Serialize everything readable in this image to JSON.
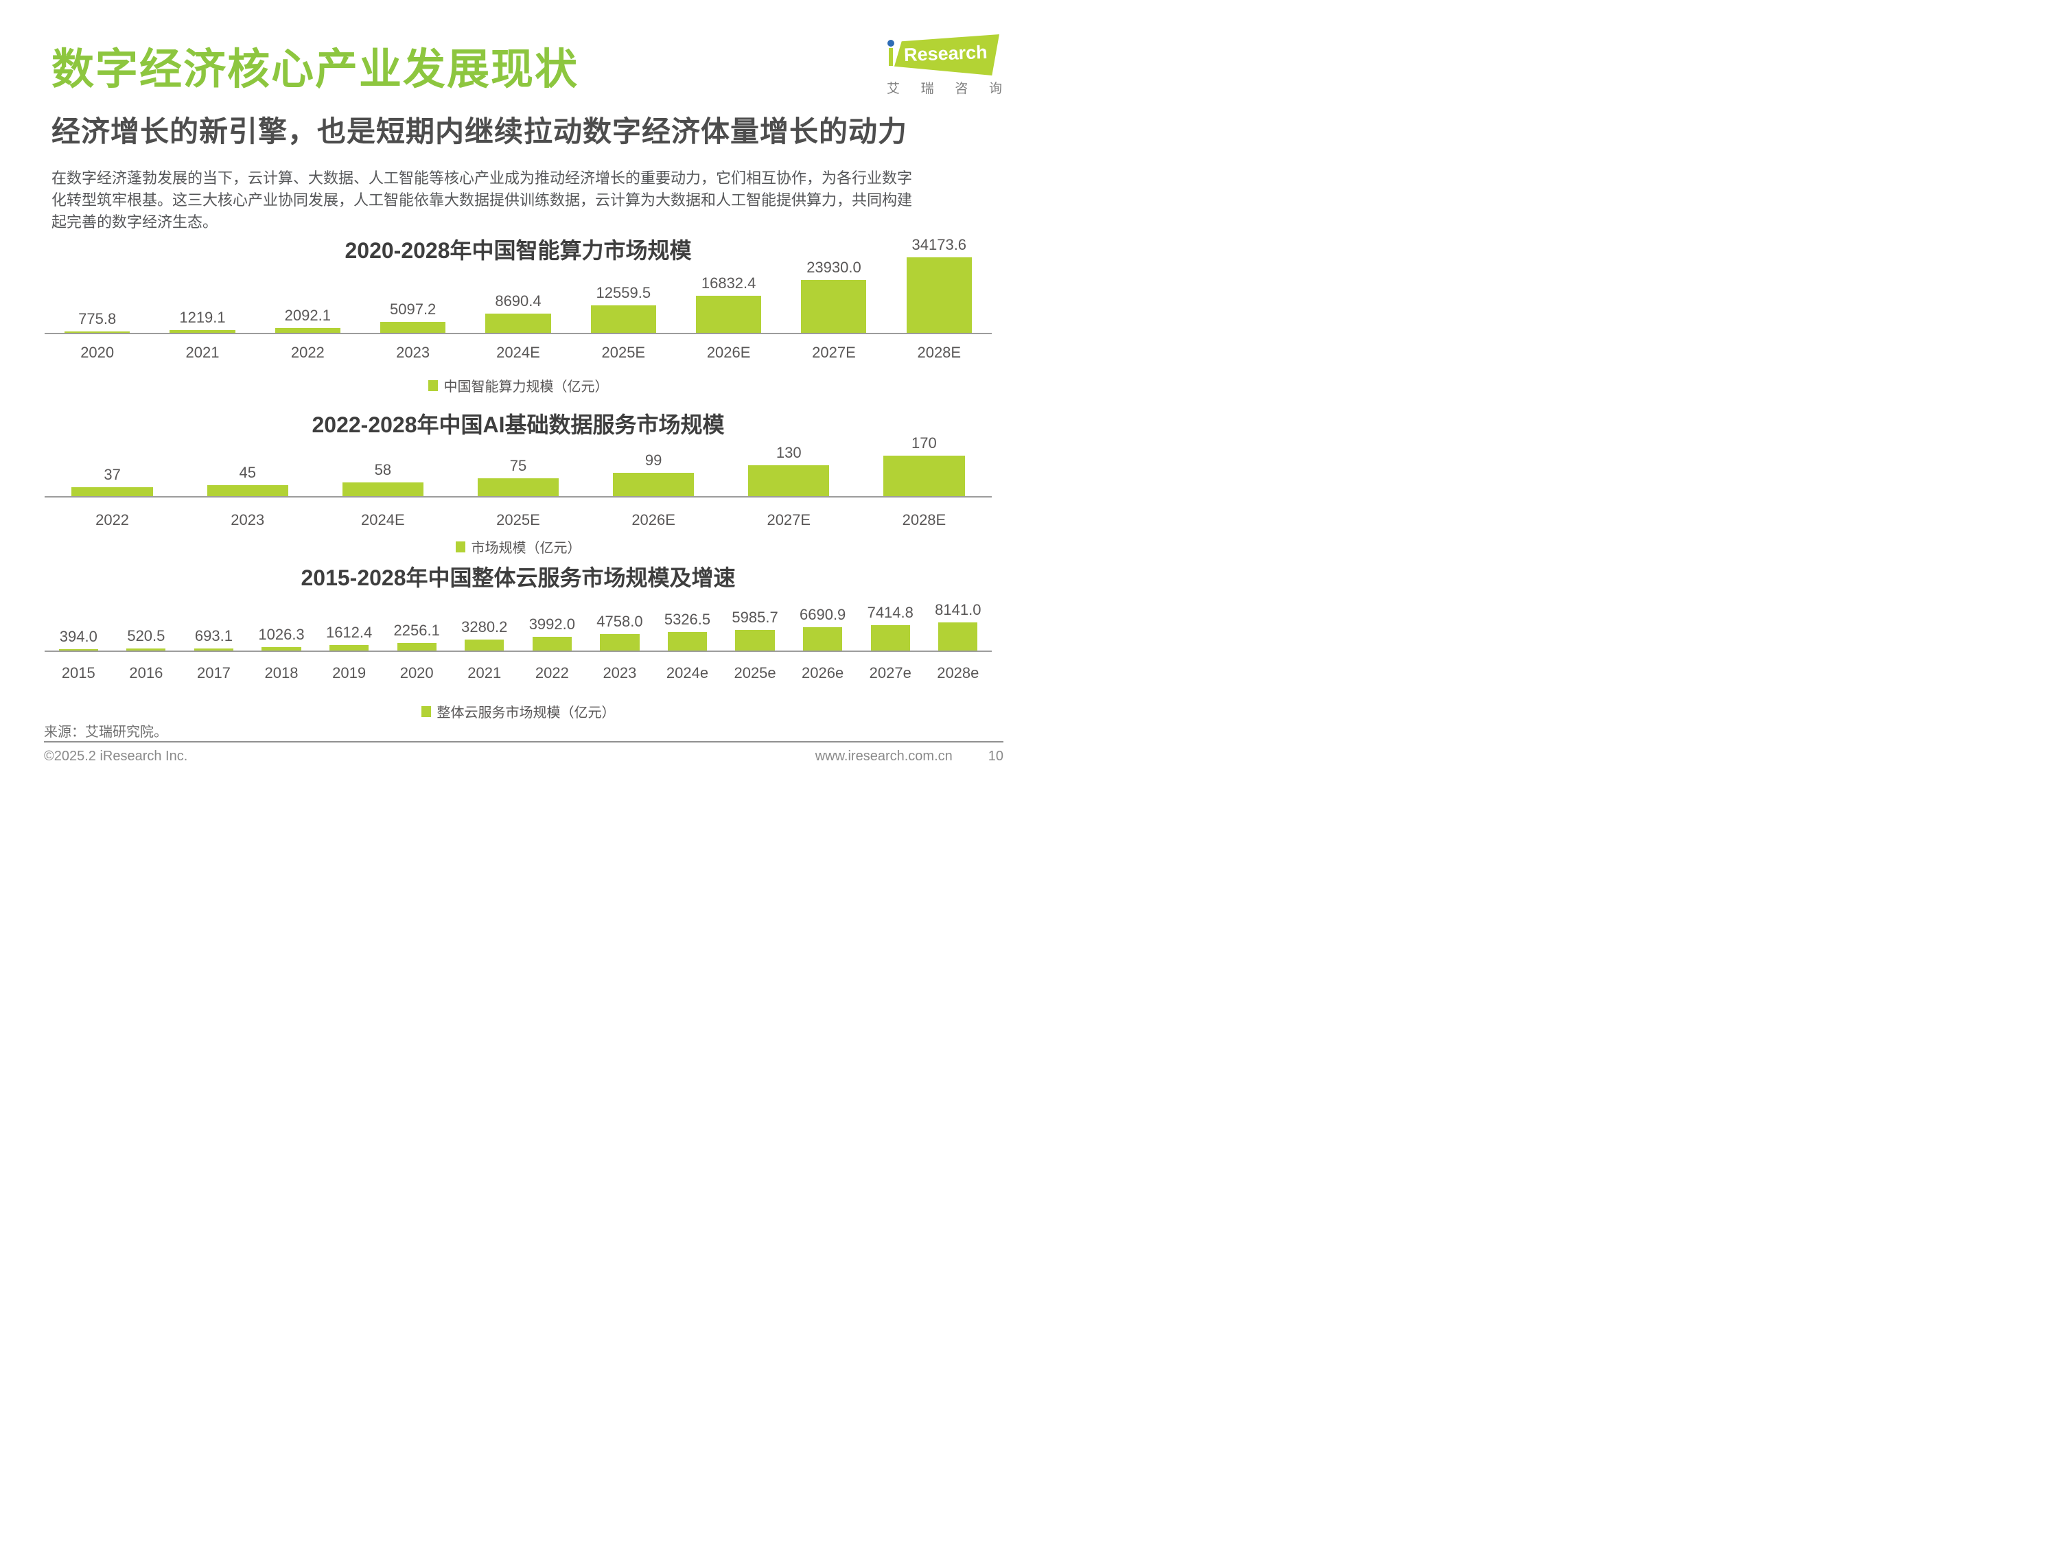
{
  "page": {
    "title": "数字经济核心产业发展现状",
    "subtitle": "经济增长的新引擎，也是短期内继续拉动数字经济体量增长的动力",
    "paragraph_lines": [
      "在数字经济蓬勃发展的当下，云计算、大数据、人工智能等核心产业成为推动经济增长的重要动力，它们相互协作，为各行业数字",
      "化转型筑牢根基。这三大核心产业协同发展，人工智能依靠大数据提供训练数据，云计算为大数据和人工智能提供算力，共同构建",
      "起完善的数字经济生态。"
    ]
  },
  "logo": {
    "i": "i",
    "rest": "Research",
    "sub_chars": [
      "艾",
      "瑞",
      "咨",
      "询"
    ]
  },
  "colors": {
    "brand_green": "#8dc63f",
    "bar_green": "#b2d235",
    "logo_green": "#b3d334",
    "logo_blue": "#2e6cb6"
  },
  "chart_data": [
    {
      "type": "bar",
      "title": "2020-2028年中国智能算力市场规模",
      "categories": [
        "2020",
        "2021",
        "2022",
        "2023",
        "2024E",
        "2025E",
        "2026E",
        "2027E",
        "2028E"
      ],
      "values": [
        775.8,
        1219.1,
        2092.1,
        5097.2,
        8690.4,
        12559.5,
        16832.4,
        23930.0,
        34173.6
      ],
      "labels": [
        "775.8",
        "1219.1",
        "2092.1",
        "5097.2",
        "8690.4",
        "12559.5",
        "16832.4",
        "23930.0",
        "34173.6"
      ],
      "legend": "中国智能算力规模（亿元）",
      "unit": "亿元",
      "ylim": [
        0,
        34173.6
      ],
      "grid": false,
      "legend_position": "bottom-center"
    },
    {
      "type": "bar",
      "title": "2022-2028年中国AI基础数据服务市场规模",
      "categories": [
        "2022",
        "2023",
        "2024E",
        "2025E",
        "2026E",
        "2027E",
        "2028E"
      ],
      "values": [
        37,
        45,
        58,
        75,
        99,
        130,
        170
      ],
      "labels": [
        "37",
        "45",
        "58",
        "75",
        "99",
        "130",
        "170"
      ],
      "legend": "市场规模（亿元）",
      "unit": "亿元",
      "ylim": [
        0,
        170
      ],
      "grid": false,
      "legend_position": "bottom-center"
    },
    {
      "type": "bar",
      "title": "2015-2028年中国整体云服务市场规模及增速",
      "categories": [
        "2015",
        "2016",
        "2017",
        "2018",
        "2019",
        "2020",
        "2021",
        "2022",
        "2023",
        "2024e",
        "2025e",
        "2026e",
        "2027e",
        "2028e"
      ],
      "values": [
        394.0,
        520.5,
        693.1,
        1026.3,
        1612.4,
        2256.1,
        3280.2,
        3992.0,
        4758.0,
        5326.5,
        5985.7,
        6690.9,
        7414.8,
        8141.0
      ],
      "labels": [
        "394.0",
        "520.5",
        "693.1",
        "1026.3",
        "1612.4",
        "2256.1",
        "3280.2",
        "3992.0",
        "4758.0",
        "5326.5",
        "5985.7",
        "6690.9",
        "7414.8",
        "8141.0"
      ],
      "legend": "整体云服务市场规模（亿元）",
      "unit": "亿元",
      "ylim": [
        0,
        8141.0
      ],
      "grid": false,
      "legend_position": "bottom-center"
    }
  ],
  "footer": {
    "source": "来源：艾瑞研究院。",
    "copyright": "©2025.2 iResearch Inc.",
    "website": "www.iresearch.com.cn",
    "page_number": "10"
  }
}
